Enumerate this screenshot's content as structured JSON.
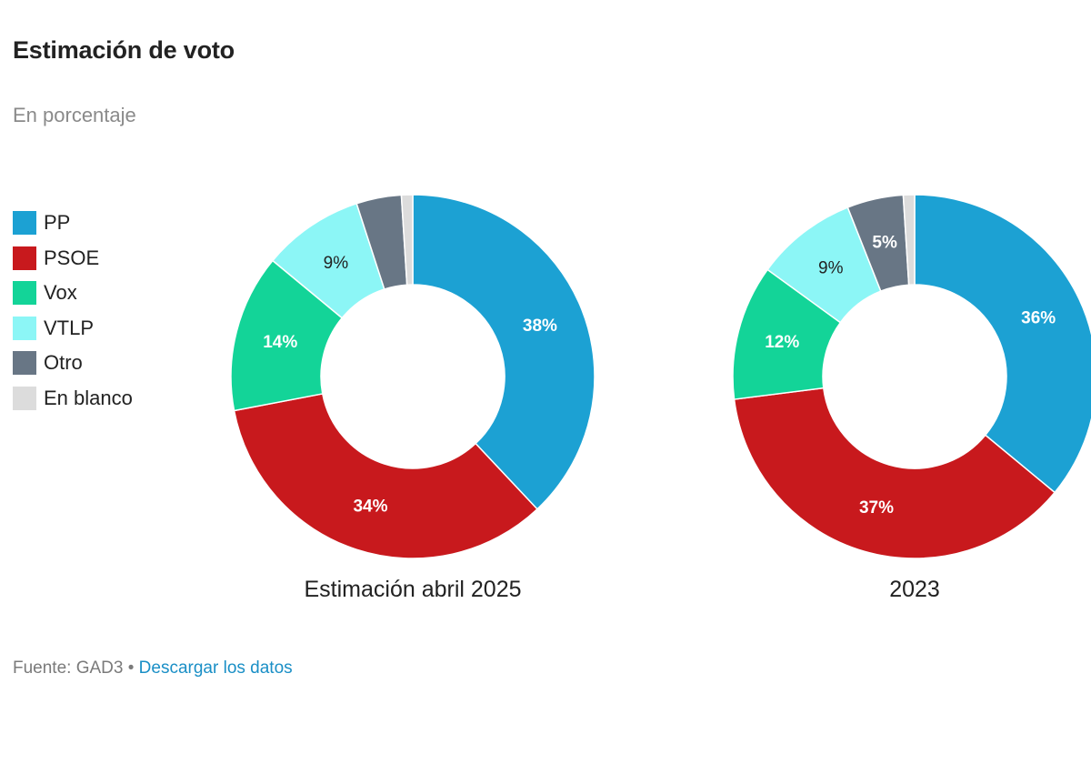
{
  "title": "Estimación de voto",
  "subtitle": "En porcentaje",
  "legend": [
    {
      "label": "PP",
      "color": "#1ca1d3"
    },
    {
      "label": "PSOE",
      "color": "#c8191d"
    },
    {
      "label": "Vox",
      "color": "#13d498"
    },
    {
      "label": "VTLP",
      "color": "#8cf6f6"
    },
    {
      "label": "Otro",
      "color": "#687685"
    },
    {
      "label": "En blanco",
      "color": "#dcdcdc"
    }
  ],
  "chart_data": [
    {
      "type": "pie",
      "variant": "donut",
      "caption": "Estimación abril 2025",
      "categories": [
        "PP",
        "PSOE",
        "Vox",
        "VTLP",
        "Otro",
        "En blanco"
      ],
      "values": [
        38,
        34,
        14,
        9,
        4,
        1
      ],
      "labels": [
        "38%",
        "34%",
        "14%",
        "9%",
        "",
        ""
      ]
    },
    {
      "type": "pie",
      "variant": "donut",
      "caption": "2023",
      "categories": [
        "PP",
        "PSOE",
        "Vox",
        "VTLP",
        "Otro",
        "En blanco"
      ],
      "values": [
        36,
        37,
        12,
        9,
        5,
        1
      ],
      "labels": [
        "36%",
        "37%",
        "12%",
        "9%",
        "5%",
        ""
      ]
    }
  ],
  "footer": {
    "source": "Fuente: GAD3 •",
    "link": "Descargar los datos"
  }
}
